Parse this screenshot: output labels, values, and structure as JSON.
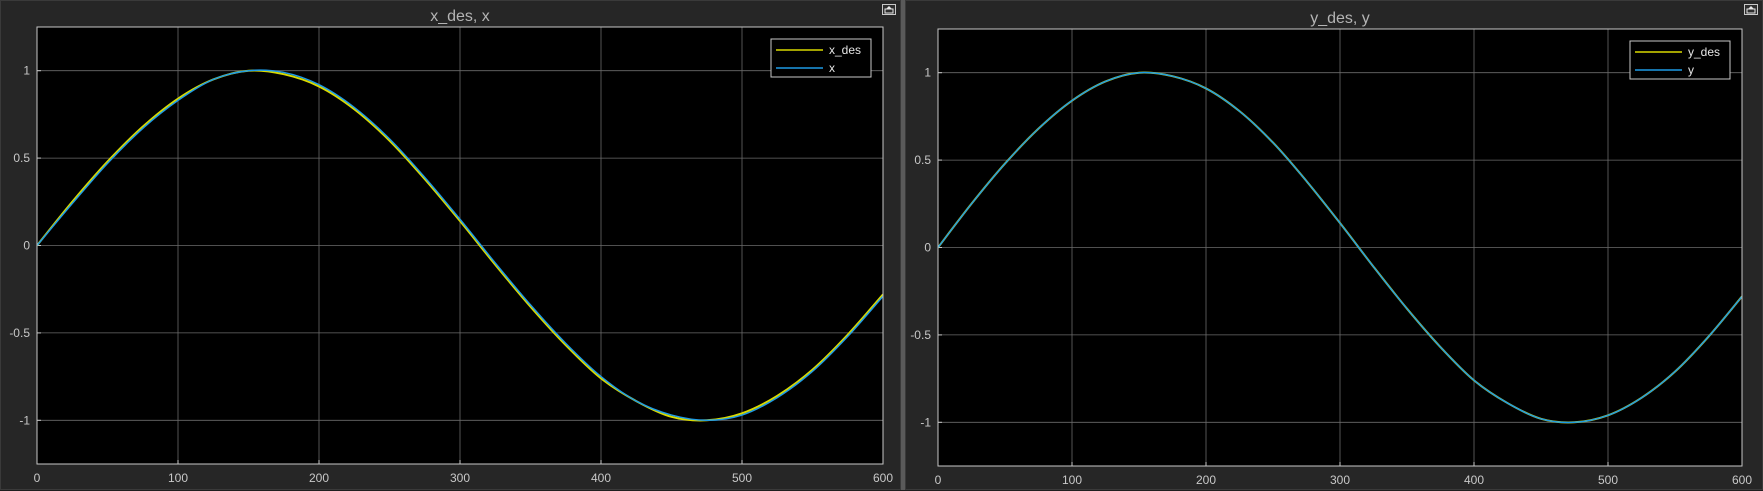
{
  "colors": {
    "desired": "#d9d900",
    "actual": "#1e9be6",
    "axes_bg": "#000000",
    "grid": "#6b6b6b",
    "frame": "#c8c8c8"
  },
  "toolbar": {
    "undock_icon": "undock-icon"
  },
  "chart_data": [
    {
      "type": "line",
      "title": "x_des, x",
      "xlim": [
        0,
        600
      ],
      "ylim": [
        -1.25,
        1.25
      ],
      "xticks": [
        0,
        100,
        200,
        300,
        400,
        500,
        600
      ],
      "yticks": [
        -1,
        -0.5,
        0,
        0.5,
        1
      ],
      "xtick_labels": [
        "0",
        "100",
        "200",
        "300",
        "400",
        "500",
        "600"
      ],
      "ytick_labels": [
        "-1",
        "-0.5",
        "0",
        "0.5",
        "1"
      ],
      "grid": true,
      "legend_position": "top-right",
      "x": [
        0,
        25,
        50,
        75,
        100,
        125,
        150,
        175,
        200,
        225,
        250,
        275,
        300,
        325,
        350,
        375,
        400,
        425,
        450,
        475,
        500,
        525,
        550,
        575,
        600
      ],
      "series": [
        {
          "name": "x_des",
          "color_key": "desired",
          "values": [
            0,
            0.25,
            0.48,
            0.68,
            0.84,
            0.95,
            1.0,
            0.98,
            0.91,
            0.78,
            0.6,
            0.38,
            0.14,
            -0.11,
            -0.35,
            -0.57,
            -0.76,
            -0.89,
            -0.98,
            -1.0,
            -0.96,
            -0.86,
            -0.71,
            -0.51,
            -0.28
          ]
        },
        {
          "name": "x",
          "color_key": "actual",
          "values": [
            0,
            0.24,
            0.47,
            0.67,
            0.83,
            0.95,
            1.0,
            0.99,
            0.92,
            0.79,
            0.61,
            0.39,
            0.15,
            -0.1,
            -0.34,
            -0.56,
            -0.75,
            -0.89,
            -0.97,
            -1.0,
            -0.97,
            -0.87,
            -0.72,
            -0.52,
            -0.29
          ]
        }
      ]
    },
    {
      "type": "line",
      "title": "y_des, y",
      "xlim": [
        0,
        600
      ],
      "ylim": [
        -1.25,
        1.25
      ],
      "xticks": [
        0,
        100,
        200,
        300,
        400,
        500,
        600
      ],
      "yticks": [
        -1,
        -0.5,
        0,
        0.5,
        1
      ],
      "xtick_labels": [
        "0",
        "100",
        "200",
        "300",
        "400",
        "500",
        "600"
      ],
      "ytick_labels": [
        "-1",
        "-0.5",
        "0",
        "0.5",
        "1"
      ],
      "grid": true,
      "legend_position": "top-right",
      "x": [
        0,
        25,
        50,
        75,
        100,
        125,
        150,
        175,
        200,
        225,
        250,
        275,
        300,
        325,
        350,
        375,
        400,
        425,
        450,
        475,
        500,
        525,
        550,
        575,
        600
      ],
      "series": [
        {
          "name": "y_des",
          "color_key": "desired",
          "values": [
            0,
            0.25,
            0.48,
            0.68,
            0.84,
            0.95,
            1.0,
            0.98,
            0.91,
            0.78,
            0.6,
            0.38,
            0.14,
            -0.11,
            -0.35,
            -0.57,
            -0.76,
            -0.89,
            -0.98,
            -1.0,
            -0.96,
            -0.86,
            -0.71,
            -0.51,
            -0.28
          ]
        },
        {
          "name": "y",
          "color_key": "actual",
          "values": [
            0,
            0.25,
            0.48,
            0.68,
            0.84,
            0.95,
            1.0,
            0.98,
            0.91,
            0.78,
            0.6,
            0.38,
            0.14,
            -0.11,
            -0.35,
            -0.57,
            -0.76,
            -0.89,
            -0.98,
            -1.0,
            -0.96,
            -0.86,
            -0.71,
            -0.51,
            -0.28
          ]
        }
      ]
    }
  ]
}
